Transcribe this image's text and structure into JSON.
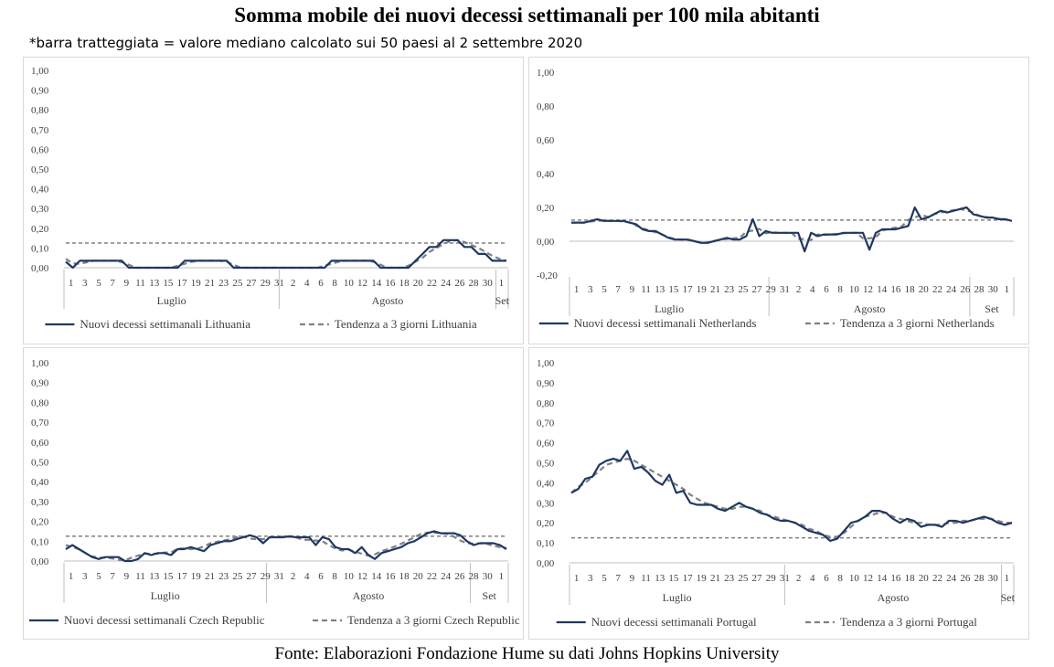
{
  "title": "Somma mobile dei nuovi decessi settimanali per 100 mila abitanti",
  "subtitle": "*barra tratteggiata = valore mediano calcolato sui 50 paesi al 2 settembre 2020",
  "footer": "Fonte: Elaborazioni Fondazione Hume su dati Johns Hopkins University",
  "colors": {
    "series": "#1f3864",
    "trend": "#808080",
    "median": "#808080",
    "axis": "#bfbfbf"
  },
  "chart_data": [
    {
      "type": "line",
      "country": "Lithuania",
      "ylim": [
        0,
        1
      ],
      "yticks": [
        "1,00",
        "0,90",
        "0,80",
        "0,70",
        "0,60",
        "0,50",
        "0,40",
        "0,30",
        "0,20",
        "0,10",
        "0,00"
      ],
      "xticks": [
        "1",
        "3",
        "5",
        "7",
        "9",
        "11",
        "13",
        "15",
        "17",
        "19",
        "21",
        "23",
        "25",
        "27",
        "29",
        "31",
        "2",
        "4",
        "6",
        "8",
        "10",
        "12",
        "14",
        "16",
        "18",
        "20",
        "22",
        "24",
        "26",
        "28",
        "30",
        "1"
      ],
      "months": [
        "Luglio",
        "Agosto",
        "Set"
      ],
      "median": 0.125,
      "series": [
        {
          "name": "Nuovi decessi settimanali Lithuania",
          "values": [
            0.03,
            0.0,
            0.035,
            0.035,
            0.035,
            0.035,
            0.035,
            0.035,
            0.035,
            0.0,
            0.0,
            0.0,
            0.0,
            0.0,
            0.0,
            0.0,
            0.0,
            0.035,
            0.035,
            0.035,
            0.035,
            0.035,
            0.035,
            0.035,
            0.0,
            0.0,
            0.0,
            0.0,
            0.0,
            0.0,
            0.0,
            0.0,
            0.0,
            0.0,
            0.0,
            0.0,
            0.0,
            0.0,
            0.035,
            0.035,
            0.035,
            0.035,
            0.035,
            0.035,
            0.035,
            0.0,
            0.0,
            0.0,
            0.0,
            0.0,
            0.035,
            0.07,
            0.105,
            0.105,
            0.14,
            0.14,
            0.14,
            0.105,
            0.105,
            0.07,
            0.07,
            0.035,
            0.035,
            0.035
          ]
        },
        {
          "name": "Tendenza a 3 giorni Lithuania",
          "values": [
            0.045,
            0.022,
            0.02,
            0.028,
            0.035,
            0.035,
            0.035,
            0.035,
            0.028,
            0.015,
            0.0,
            0.0,
            0.0,
            0.0,
            0.0,
            0.0,
            0.01,
            0.02,
            0.03,
            0.035,
            0.035,
            0.035,
            0.035,
            0.03,
            0.015,
            0.0,
            0.0,
            0.0,
            0.0,
            0.0,
            0.0,
            0.0,
            0.0,
            0.0,
            0.0,
            0.0,
            0.0,
            0.01,
            0.02,
            0.03,
            0.035,
            0.035,
            0.035,
            0.035,
            0.03,
            0.015,
            0.0,
            0.0,
            0.0,
            0.01,
            0.03,
            0.05,
            0.08,
            0.1,
            0.12,
            0.135,
            0.14,
            0.13,
            0.115,
            0.1,
            0.08,
            0.06,
            0.045,
            0.035
          ]
        }
      ]
    },
    {
      "type": "line",
      "country": "Netherlands",
      "ylim": [
        -0.2,
        1
      ],
      "yticks": [
        "1,00",
        "0,80",
        "0,60",
        "0,40",
        "0,20",
        "0,00",
        "-0,20"
      ],
      "xticks": [
        "1",
        "3",
        "5",
        "7",
        "9",
        "11",
        "13",
        "15",
        "17",
        "19",
        "21",
        "23",
        "25",
        "27",
        "29",
        "31",
        "2",
        "4",
        "6",
        "8",
        "10",
        "12",
        "14",
        "16",
        "18",
        "20",
        "22",
        "24",
        "26",
        "28",
        "30",
        "1"
      ],
      "months": [
        "Luglio",
        "Agosto",
        "Set"
      ],
      "median": 0.125,
      "series": [
        {
          "name": "Nuovi decessi settimanali Netherlands",
          "values": [
            0.11,
            0.11,
            0.11,
            0.12,
            0.13,
            0.12,
            0.12,
            0.12,
            0.12,
            0.11,
            0.1,
            0.07,
            0.06,
            0.06,
            0.04,
            0.02,
            0.01,
            0.01,
            0.01,
            0.0,
            -0.01,
            -0.01,
            0.0,
            0.01,
            0.02,
            0.01,
            0.01,
            0.03,
            0.13,
            0.03,
            0.06,
            0.05,
            0.05,
            0.05,
            0.05,
            0.05,
            -0.06,
            0.05,
            0.03,
            0.04,
            0.04,
            0.04,
            0.05,
            0.05,
            0.05,
            0.05,
            -0.05,
            0.05,
            0.07,
            0.07,
            0.07,
            0.08,
            0.09,
            0.2,
            0.13,
            0.14,
            0.16,
            0.18,
            0.17,
            0.18,
            0.19,
            0.2,
            0.16,
            0.15,
            0.14,
            0.14,
            0.13,
            0.13,
            0.12
          ]
        },
        {
          "name": "Tendenza a 3 giorni Netherlands",
          "values": [
            0.11,
            0.11,
            0.11,
            0.117,
            0.12,
            0.123,
            0.12,
            0.12,
            0.117,
            0.11,
            0.093,
            0.077,
            0.063,
            0.053,
            0.04,
            0.023,
            0.013,
            0.01,
            0.007,
            0.0,
            -0.007,
            -0.007,
            0.0,
            0.01,
            0.013,
            0.017,
            0.02,
            0.057,
            0.063,
            0.073,
            0.047,
            0.053,
            0.05,
            0.05,
            0.05,
            0.013,
            0.013,
            0.007,
            0.04,
            0.037,
            0.04,
            0.043,
            0.047,
            0.05,
            0.05,
            0.017,
            0.017,
            0.023,
            0.063,
            0.073,
            0.08,
            0.087,
            0.127,
            0.14,
            0.157,
            0.143,
            0.16,
            0.17,
            0.177,
            0.183,
            0.19,
            0.183,
            0.17,
            0.15,
            0.143,
            0.137,
            0.133,
            0.127,
            0.125
          ]
        }
      ]
    },
    {
      "type": "line",
      "country": "Czech Republic",
      "ylim": [
        0,
        1
      ],
      "yticks": [
        "1,00",
        "0,90",
        "0,80",
        "0,70",
        "0,60",
        "0,50",
        "0,40",
        "0,30",
        "0,20",
        "0,10",
        "0,00"
      ],
      "xticks": [
        "1",
        "3",
        "5",
        "7",
        "9",
        "11",
        "13",
        "15",
        "17",
        "19",
        "21",
        "23",
        "25",
        "27",
        "29",
        "31",
        "2",
        "4",
        "6",
        "8",
        "10",
        "12",
        "14",
        "16",
        "18",
        "20",
        "22",
        "24",
        "26",
        "28",
        "30",
        "1"
      ],
      "months": [
        "Luglio",
        "Agosto",
        "Set"
      ],
      "median": 0.125,
      "series": [
        {
          "name": "Nuovi decessi settimanali Czech Republic",
          "values": [
            0.06,
            0.08,
            0.06,
            0.04,
            0.02,
            0.01,
            0.02,
            0.02,
            0.02,
            0.0,
            0.0,
            0.01,
            0.04,
            0.03,
            0.04,
            0.04,
            0.03,
            0.06,
            0.06,
            0.07,
            0.06,
            0.05,
            0.08,
            0.09,
            0.1,
            0.1,
            0.11,
            0.12,
            0.13,
            0.12,
            0.09,
            0.12,
            0.12,
            0.12,
            0.125,
            0.12,
            0.12,
            0.12,
            0.08,
            0.12,
            0.11,
            0.07,
            0.06,
            0.06,
            0.04,
            0.07,
            0.03,
            0.01,
            0.04,
            0.05,
            0.06,
            0.07,
            0.09,
            0.1,
            0.12,
            0.14,
            0.15,
            0.14,
            0.14,
            0.14,
            0.13,
            0.1,
            0.08,
            0.09,
            0.09,
            0.09,
            0.08,
            0.06
          ]
        },
        {
          "name": "Tendenza a 3 giorni Czech Republic",
          "values": [
            0.08,
            0.07,
            0.06,
            0.04,
            0.023,
            0.017,
            0.017,
            0.013,
            0.007,
            0.003,
            0.017,
            0.027,
            0.037,
            0.037,
            0.037,
            0.043,
            0.043,
            0.063,
            0.063,
            0.06,
            0.063,
            0.073,
            0.09,
            0.097,
            0.103,
            0.11,
            0.12,
            0.123,
            0.113,
            0.11,
            0.11,
            0.12,
            0.123,
            0.122,
            0.122,
            0.12,
            0.107,
            0.107,
            0.103,
            0.1,
            0.08,
            0.063,
            0.053,
            0.057,
            0.047,
            0.037,
            0.027,
            0.033,
            0.05,
            0.06,
            0.073,
            0.087,
            0.103,
            0.12,
            0.137,
            0.143,
            0.143,
            0.14,
            0.137,
            0.123,
            0.103,
            0.09,
            0.087,
            0.09,
            0.087,
            0.077,
            0.07,
            0.065
          ]
        }
      ]
    },
    {
      "type": "line",
      "country": "Portugal",
      "ylim": [
        0,
        1
      ],
      "yticks": [
        "1,00",
        "0,90",
        "0,80",
        "0,70",
        "0,60",
        "0,50",
        "0,40",
        "0,30",
        "0,20",
        "0,10",
        "0,00"
      ],
      "xticks": [
        "1",
        "3",
        "5",
        "7",
        "9",
        "11",
        "13",
        "15",
        "17",
        "19",
        "21",
        "23",
        "25",
        "27",
        "29",
        "31",
        "2",
        "4",
        "6",
        "8",
        "10",
        "12",
        "14",
        "16",
        "18",
        "20",
        "22",
        "24",
        "26",
        "28",
        "30",
        "1"
      ],
      "months": [
        "Luglio",
        "Agosto",
        "Set"
      ],
      "median": 0.125,
      "series": [
        {
          "name": "Nuovi decessi settimanali Portugal",
          "values": [
            0.35,
            0.37,
            0.42,
            0.43,
            0.49,
            0.51,
            0.52,
            0.51,
            0.56,
            0.47,
            0.48,
            0.45,
            0.41,
            0.39,
            0.44,
            0.35,
            0.36,
            0.3,
            0.29,
            0.29,
            0.29,
            0.27,
            0.26,
            0.28,
            0.3,
            0.28,
            0.27,
            0.25,
            0.24,
            0.22,
            0.21,
            0.21,
            0.2,
            0.18,
            0.16,
            0.15,
            0.14,
            0.11,
            0.12,
            0.16,
            0.2,
            0.21,
            0.23,
            0.26,
            0.26,
            0.25,
            0.22,
            0.2,
            0.22,
            0.21,
            0.18,
            0.19,
            0.19,
            0.18,
            0.21,
            0.21,
            0.2,
            0.21,
            0.22,
            0.23,
            0.22,
            0.2,
            0.19,
            0.2
          ]
        },
        {
          "name": "Tendenza a 3 giorni Portugal",
          "values": [
            0.35,
            0.38,
            0.4,
            0.43,
            0.46,
            0.49,
            0.5,
            0.51,
            0.52,
            0.51,
            0.49,
            0.47,
            0.45,
            0.43,
            0.41,
            0.39,
            0.37,
            0.34,
            0.32,
            0.3,
            0.29,
            0.28,
            0.27,
            0.27,
            0.28,
            0.28,
            0.27,
            0.26,
            0.24,
            0.23,
            0.22,
            0.21,
            0.2,
            0.19,
            0.17,
            0.16,
            0.14,
            0.13,
            0.13,
            0.15,
            0.18,
            0.21,
            0.23,
            0.24,
            0.25,
            0.25,
            0.23,
            0.22,
            0.21,
            0.2,
            0.2,
            0.19,
            0.19,
            0.19,
            0.2,
            0.2,
            0.21,
            0.21,
            0.22,
            0.22,
            0.22,
            0.21,
            0.2,
            0.2
          ]
        }
      ]
    }
  ]
}
